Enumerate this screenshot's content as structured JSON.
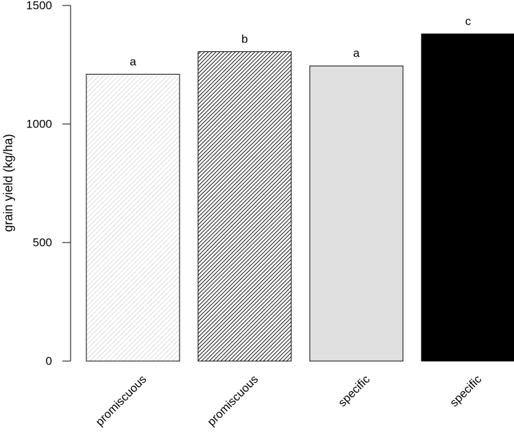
{
  "chart_data": {
    "type": "bar",
    "title": "",
    "xlabel": "",
    "ylabel": "grain yield (kg/ha)",
    "ylim": [
      0,
      1500
    ],
    "yticks": [
      0,
      500,
      1000,
      1500
    ],
    "grid": false,
    "legend": "none",
    "categories": [
      "promiscuous",
      "promiscuous",
      "specific",
      "specific"
    ],
    "values": [
      1210,
      1305,
      1245,
      1380
    ],
    "significance_letters": [
      "a",
      "b",
      "a",
      "c"
    ],
    "bar_styles": [
      {
        "fill": "#ffffff",
        "hatch": "#c8c8c8",
        "hatch_density": "light"
      },
      {
        "fill": "#ffffff",
        "hatch": "#111111",
        "hatch_density": "dense"
      },
      {
        "fill": "#e0e0e0",
        "hatch": "",
        "hatch_density": "none"
      },
      {
        "fill": "#000000",
        "hatch": "",
        "hatch_density": "none"
      }
    ]
  }
}
